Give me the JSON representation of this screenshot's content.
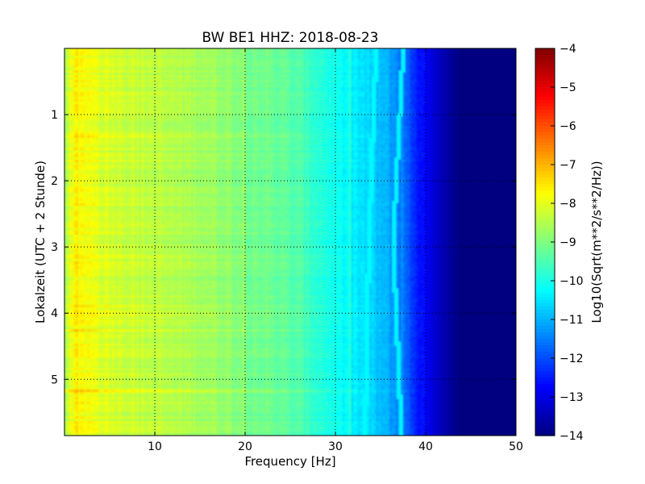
{
  "chart_data": {
    "type": "heatmap",
    "title": "BW BE1 HHZ: 2018-08-23",
    "xlabel": "Frequency [Hz]",
    "ylabel": "Lokalzeit (UTC + 2 Stunde)",
    "xlim": [
      0,
      50
    ],
    "ylim": [
      5.85,
      0
    ],
    "x_ticks": [
      10,
      20,
      30,
      40,
      50
    ],
    "y_ticks": [
      1,
      2,
      3,
      4,
      5
    ],
    "grid": true,
    "colormap": "jet",
    "colorbar": {
      "label": "Log10(Sqrt(m**2/s**2/Hz))",
      "range": [
        -14,
        -4
      ],
      "ticks": [
        -4,
        -5,
        -6,
        -7,
        -8,
        -9,
        -10,
        -11,
        -12,
        -13,
        -14
      ]
    },
    "level_profile": {
      "frequency_hz": [
        0,
        1,
        3,
        5,
        8,
        10,
        12,
        15,
        18,
        20,
        23,
        26,
        28,
        30,
        32,
        34,
        36,
        37,
        38,
        39,
        40,
        41,
        42,
        43,
        44,
        45,
        50
      ],
      "log10_psd": [
        -8.6,
        -7.8,
        -7.9,
        -8.1,
        -8.3,
        -8.4,
        -8.5,
        -8.6,
        -8.8,
        -9.0,
        -9.2,
        -9.5,
        -9.8,
        -10.1,
        -10.4,
        -10.7,
        -11.1,
        -11.5,
        -11.9,
        -12.4,
        -12.8,
        -13.2,
        -13.5,
        -13.8,
        -14.0,
        -14.0,
        -14.0
      ]
    },
    "spectral_lines": [
      {
        "freq_start_hz": 34.5,
        "freq_end_hz": 33.3,
        "freq_mid_hz": 33.7,
        "log10_psd": -10.3
      },
      {
        "freq_start_hz": 37.5,
        "freq_end_hz": 37.3,
        "freq_mid_hz": 36.4,
        "log10_psd": -10.4
      }
    ]
  }
}
